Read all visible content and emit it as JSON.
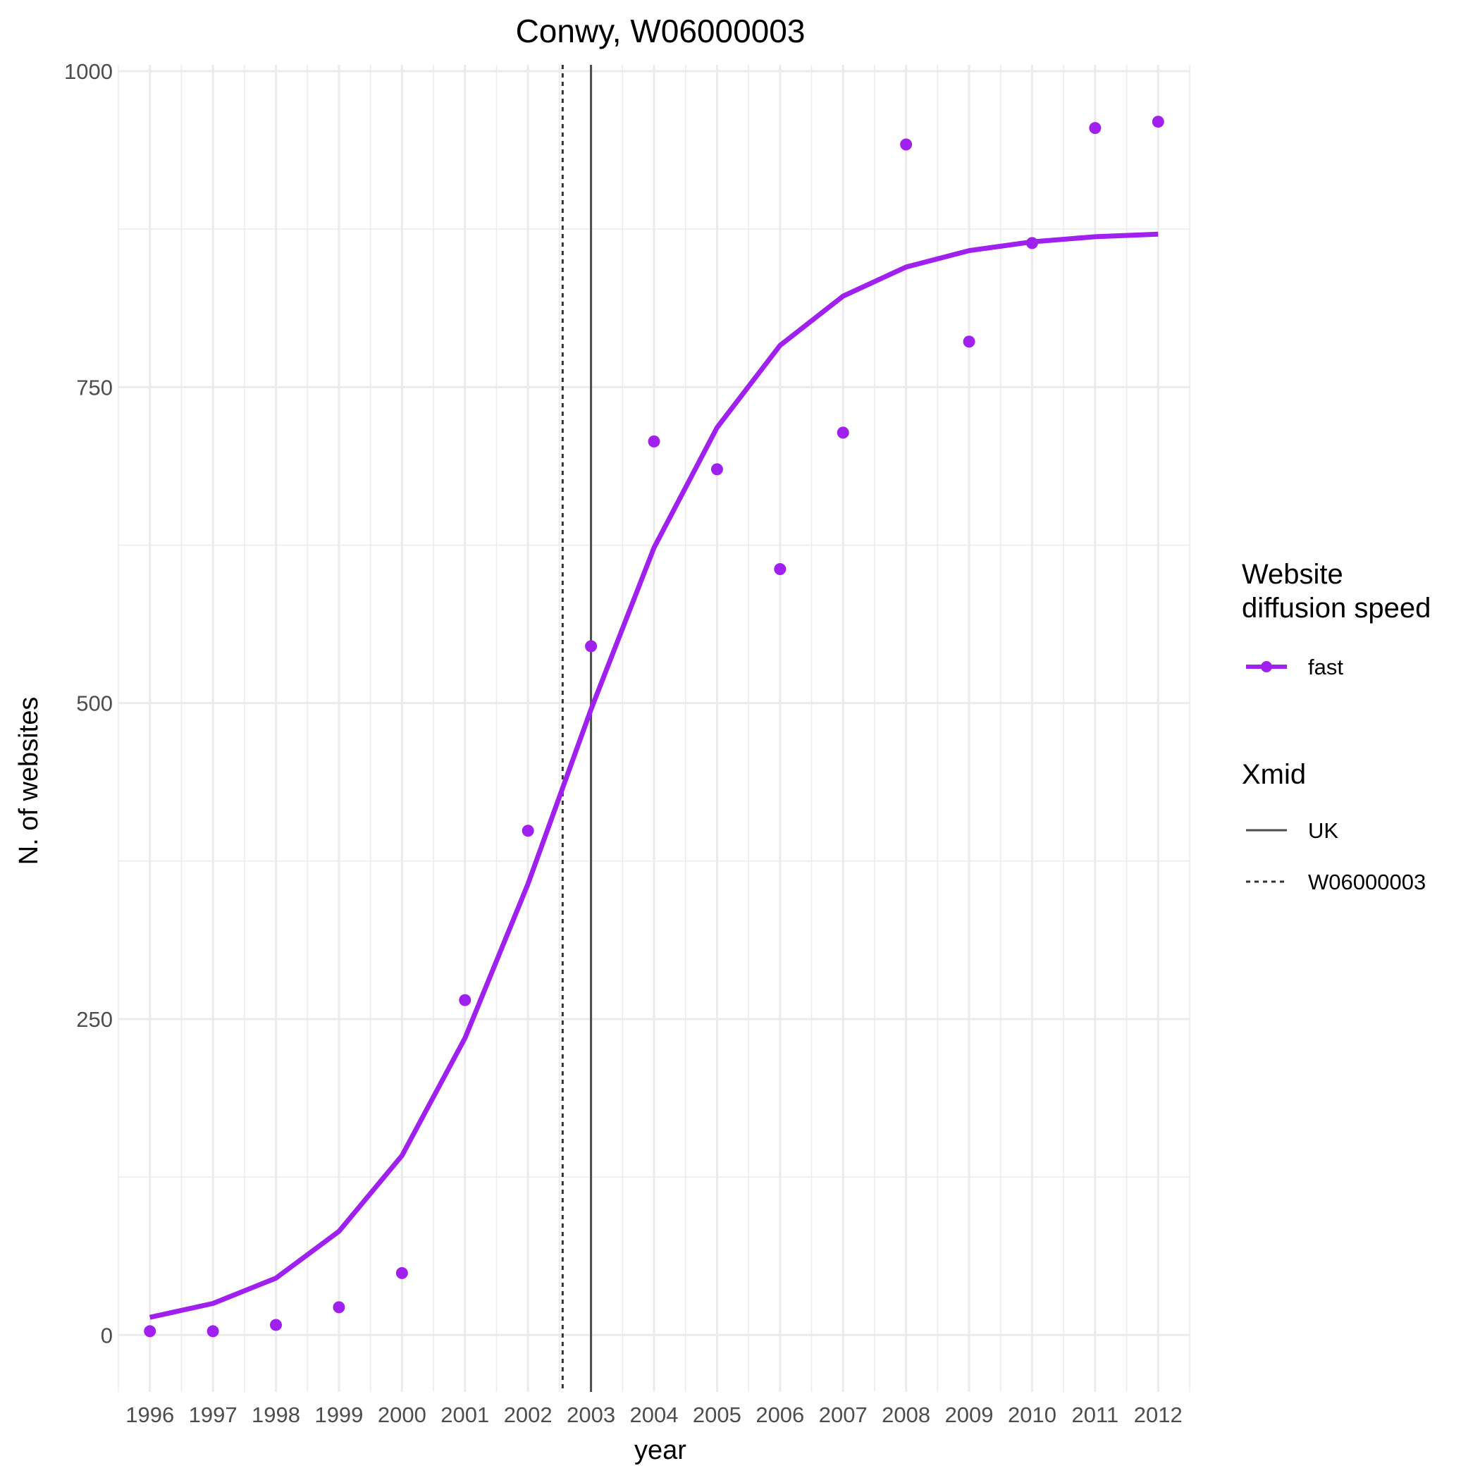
{
  "chart_data": {
    "type": "scatter",
    "title": "Conwy, W06000003",
    "xlabel": "year",
    "ylabel": "N. of websites",
    "xlim": [
      1995.5,
      2012.5
    ],
    "ylim": [
      -45,
      1005
    ],
    "x_ticks": [
      1996,
      1997,
      1998,
      1999,
      2000,
      2001,
      2002,
      2003,
      2004,
      2005,
      2006,
      2007,
      2008,
      2009,
      2010,
      2011,
      2012
    ],
    "y_ticks": [
      0,
      250,
      500,
      750,
      1000
    ],
    "grid": true,
    "legend_position": "right",
    "series": [
      {
        "name": "fast",
        "type": "points",
        "color": "#a020f0",
        "x": [
          1996,
          1997,
          1998,
          1999,
          2000,
          2001,
          2002,
          2003,
          2004,
          2005,
          2006,
          2007,
          2008,
          2009,
          2010,
          2011,
          2012
        ],
        "y": [
          3,
          3,
          8,
          22,
          49,
          265,
          399,
          545,
          707,
          685,
          606,
          714,
          942,
          786,
          864,
          955,
          960
        ]
      },
      {
        "name": "fast",
        "type": "line",
        "color": "#a020f0",
        "x": [
          1996,
          1997,
          1998,
          1999,
          2000,
          2001,
          2002,
          2003,
          2004,
          2005,
          2006,
          2007,
          2008,
          2009,
          2010,
          2011,
          2012
        ],
        "y": [
          14,
          25,
          45,
          82,
          142,
          235,
          357,
          495,
          623,
          718,
          783,
          822,
          845,
          858,
          865,
          869,
          871
        ]
      }
    ],
    "vlines": [
      {
        "name": "UK",
        "x": 2003.0,
        "style": "solid",
        "color": "#4d4d4d"
      },
      {
        "name": "W06000003",
        "x": 2002.55,
        "style": "dotted",
        "color": "#333333"
      }
    ],
    "legend": {
      "speed": {
        "title_line1": "Website",
        "title_line2": "diffusion speed",
        "entries": [
          "fast"
        ]
      },
      "xmid": {
        "title": "Xmid",
        "entries": [
          "UK",
          "W06000003"
        ]
      }
    }
  }
}
